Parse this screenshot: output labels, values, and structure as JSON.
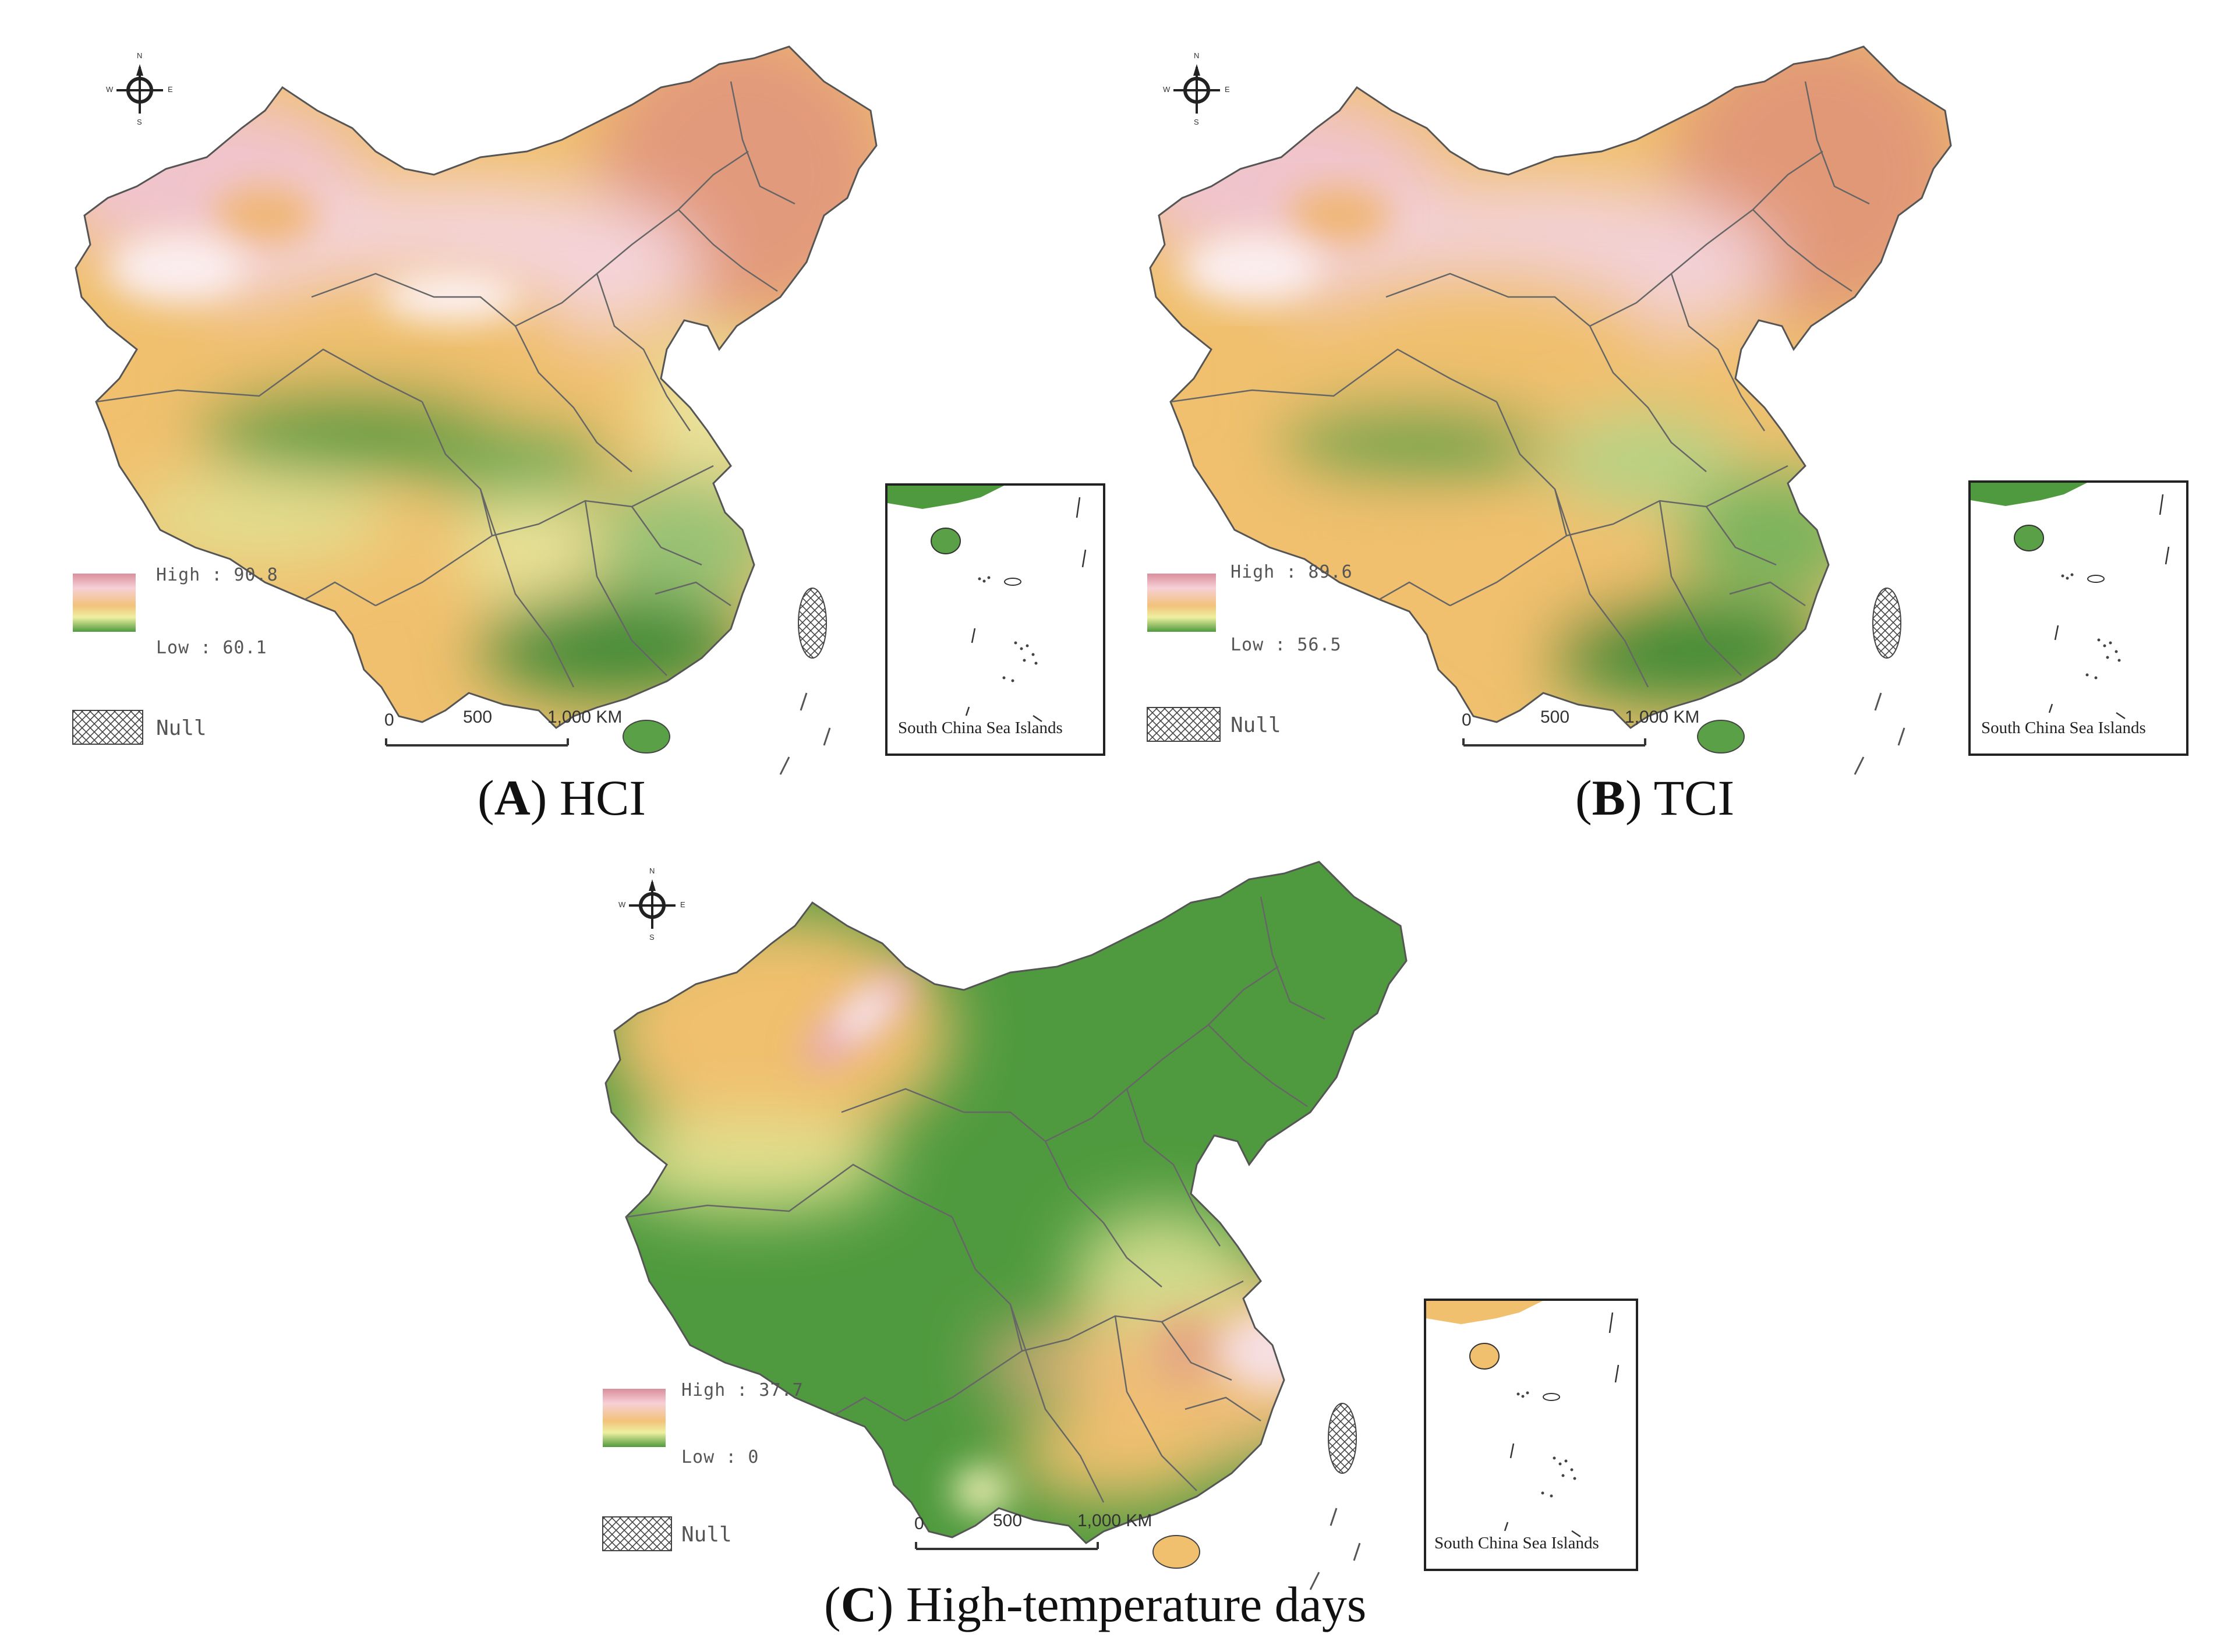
{
  "compass": {
    "north": "N",
    "south": "S",
    "east": "E",
    "west": "W"
  },
  "panels": [
    {
      "caption_letter": "A",
      "caption_rest": "HCI",
      "legend_high": "High : 90.8",
      "legend_low": "Low : 60.1",
      "null_label": "Null",
      "scale_ticks": [
        "0",
        "500",
        "1,000 KM"
      ],
      "inset_label": "South China Sea Islands",
      "color_high": "#d98f9c",
      "color_mid": "#f2c27a",
      "color_low": "#4f9a3e"
    },
    {
      "caption_letter": "B",
      "caption_rest": "TCI",
      "legend_high": "High : 89.6",
      "legend_low": "Low : 56.5",
      "null_label": "Null",
      "scale_ticks": [
        "0",
        "500",
        "1,000 KM"
      ],
      "inset_label": "South China Sea Islands",
      "color_high": "#d98f9c",
      "color_mid": "#f2c27a",
      "color_low": "#4f9a3e"
    },
    {
      "caption_letter": "C",
      "caption_rest": "High-temperature days",
      "legend_high": "High : 37.7",
      "legend_low": "Low : 0",
      "null_label": "Null",
      "scale_ticks": [
        "0",
        "500",
        "1,000 KM"
      ],
      "inset_label": "South China Sea Islands",
      "color_high": "#d98f9c",
      "color_mid": "#f2c27a",
      "color_low": "#4f9a3e"
    }
  ]
}
